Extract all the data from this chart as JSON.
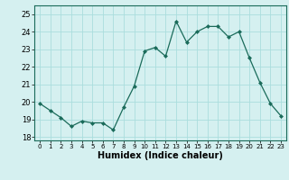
{
  "x": [
    0,
    1,
    2,
    3,
    4,
    5,
    6,
    7,
    8,
    9,
    10,
    11,
    12,
    13,
    14,
    15,
    16,
    17,
    18,
    19,
    20,
    21,
    22,
    23
  ],
  "y": [
    19.9,
    19.5,
    19.1,
    18.6,
    18.9,
    18.8,
    18.8,
    18.4,
    19.7,
    20.9,
    22.9,
    23.1,
    22.6,
    24.6,
    23.4,
    24.0,
    24.3,
    24.3,
    23.7,
    24.0,
    22.5,
    21.1,
    19.9,
    19.2
  ],
  "line_color": "#1a6b5a",
  "marker": "D",
  "marker_size": 2.0,
  "background_color": "#d5f0f0",
  "grid_color": "#aadddd",
  "xlabel": "Humidex (Indice chaleur)",
  "xlabel_fontsize": 7,
  "tick_fontsize": 6,
  "ylim": [
    17.8,
    25.5
  ],
  "xlim": [
    -0.5,
    23.5
  ],
  "yticks": [
    18,
    19,
    20,
    21,
    22,
    23,
    24,
    25
  ],
  "xticks": [
    0,
    1,
    2,
    3,
    4,
    5,
    6,
    7,
    8,
    9,
    10,
    11,
    12,
    13,
    14,
    15,
    16,
    17,
    18,
    19,
    20,
    21,
    22,
    23
  ]
}
